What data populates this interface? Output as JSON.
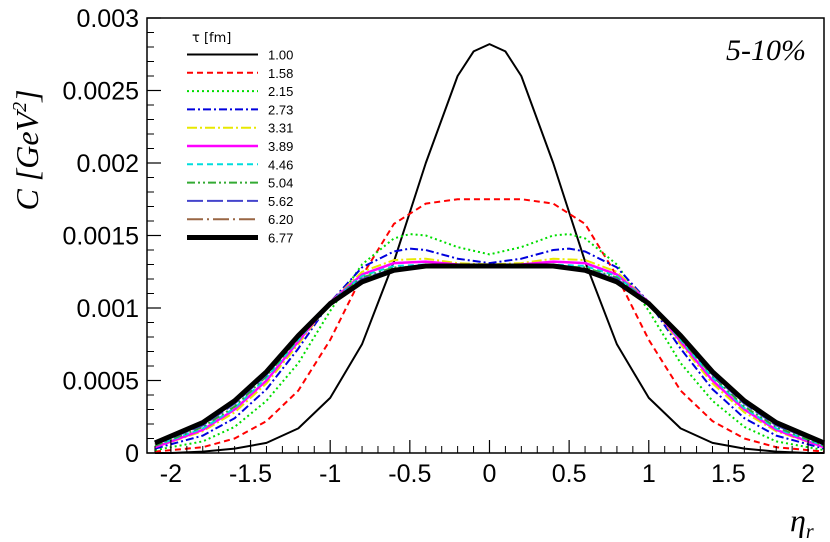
{
  "chart_data": {
    "type": "line",
    "title": "",
    "annotation": "5-10%",
    "xlabel": "η",
    "xlabel_sub": "r",
    "ylabel": "C [GeV²]",
    "ylabel_parts": {
      "main": "C ",
      "open": "[",
      "unit": "GeV",
      "sup": "2",
      "close": "]"
    },
    "xlim": [
      -2.15,
      2.1
    ],
    "ylim": [
      0,
      0.003
    ],
    "xticks": [
      -2,
      -1.5,
      -1,
      -0.5,
      0,
      0.5,
      1,
      1.5,
      2
    ],
    "xtick_labels": [
      "-2",
      "-1.5",
      "-1",
      "-0.5",
      "0",
      "0.5",
      "1",
      "1.5",
      "2"
    ],
    "yticks": [
      0,
      0.0005,
      0.001,
      0.0015,
      0.002,
      0.0025,
      0.003
    ],
    "ytick_labels": [
      "0",
      "0.0005",
      "0.001",
      "0.0015",
      "0.002",
      "0.0025",
      "0.003"
    ],
    "grid": false,
    "legend_title": "τ [fm]",
    "legend_position": "top-left",
    "series": [
      {
        "name": "1.00",
        "color": "#000000",
        "dash": "solid",
        "width": 2,
        "points": [
          [
            -2.1,
            0.0
          ],
          [
            -2.0,
            0.0
          ],
          [
            -1.8,
            1e-05
          ],
          [
            -1.6,
            3e-05
          ],
          [
            -1.4,
            7e-05
          ],
          [
            -1.2,
            0.00017
          ],
          [
            -1.0,
            0.00038
          ],
          [
            -0.8,
            0.00075
          ],
          [
            -0.6,
            0.00132
          ],
          [
            -0.4,
            0.002
          ],
          [
            -0.2,
            0.0026
          ],
          [
            -0.1,
            0.00277
          ],
          [
            0.0,
            0.00282
          ],
          [
            0.1,
            0.00277
          ],
          [
            0.2,
            0.0026
          ],
          [
            0.4,
            0.002
          ],
          [
            0.6,
            0.00132
          ],
          [
            0.8,
            0.00075
          ],
          [
            1.0,
            0.00038
          ],
          [
            1.2,
            0.00017
          ],
          [
            1.4,
            7e-05
          ],
          [
            1.6,
            3e-05
          ],
          [
            1.8,
            1e-05
          ],
          [
            2.0,
            0.0
          ],
          [
            2.1,
            0.0
          ]
        ]
      },
      {
        "name": "1.58",
        "color": "#ff0000",
        "dash": "6,4",
        "width": 2,
        "points": [
          [
            -2.1,
            1e-05
          ],
          [
            -1.8,
            4e-05
          ],
          [
            -1.6,
            0.0001
          ],
          [
            -1.4,
            0.00022
          ],
          [
            -1.2,
            0.00043
          ],
          [
            -1.0,
            0.00078
          ],
          [
            -0.8,
            0.00122
          ],
          [
            -0.6,
            0.00158
          ],
          [
            -0.4,
            0.00172
          ],
          [
            -0.2,
            0.00175
          ],
          [
            0.0,
            0.00175
          ],
          [
            0.2,
            0.00175
          ],
          [
            0.4,
            0.00172
          ],
          [
            0.6,
            0.00158
          ],
          [
            0.8,
            0.00122
          ],
          [
            1.0,
            0.00078
          ],
          [
            1.2,
            0.00043
          ],
          [
            1.4,
            0.00022
          ],
          [
            1.6,
            0.0001
          ],
          [
            1.8,
            4e-05
          ],
          [
            2.1,
            1e-05
          ]
        ]
      },
      {
        "name": "2.15",
        "color": "#00dd00",
        "dash": "2,3",
        "width": 2,
        "points": [
          [
            -2.1,
            2e-05
          ],
          [
            -1.8,
            8e-05
          ],
          [
            -1.6,
            0.00018
          ],
          [
            -1.4,
            0.00036
          ],
          [
            -1.2,
            0.00062
          ],
          [
            -1.0,
            0.00098
          ],
          [
            -0.8,
            0.0013
          ],
          [
            -0.6,
            0.00148
          ],
          [
            -0.5,
            0.00151
          ],
          [
            -0.4,
            0.0015
          ],
          [
            -0.2,
            0.00142
          ],
          [
            0.0,
            0.00137
          ],
          [
            0.2,
            0.00142
          ],
          [
            0.4,
            0.0015
          ],
          [
            0.5,
            0.00151
          ],
          [
            0.6,
            0.00148
          ],
          [
            0.8,
            0.0013
          ],
          [
            1.0,
            0.00098
          ],
          [
            1.2,
            0.00062
          ],
          [
            1.4,
            0.00036
          ],
          [
            1.6,
            0.00018
          ],
          [
            1.8,
            8e-05
          ],
          [
            2.1,
            2e-05
          ]
        ]
      },
      {
        "name": "2.73",
        "color": "#0000dd",
        "dash": "8,3,2,3",
        "width": 2,
        "points": [
          [
            -2.1,
            3e-05
          ],
          [
            -1.8,
            0.00012
          ],
          [
            -1.6,
            0.00024
          ],
          [
            -1.4,
            0.00044
          ],
          [
            -1.2,
            0.00072
          ],
          [
            -1.0,
            0.00104
          ],
          [
            -0.8,
            0.00128
          ],
          [
            -0.6,
            0.00139
          ],
          [
            -0.5,
            0.00141
          ],
          [
            -0.4,
            0.0014
          ],
          [
            -0.2,
            0.00134
          ],
          [
            0.0,
            0.00131
          ],
          [
            0.2,
            0.00134
          ],
          [
            0.4,
            0.0014
          ],
          [
            0.5,
            0.00141
          ],
          [
            0.6,
            0.00139
          ],
          [
            0.8,
            0.00128
          ],
          [
            1.0,
            0.00104
          ],
          [
            1.2,
            0.00072
          ],
          [
            1.4,
            0.00044
          ],
          [
            1.6,
            0.00024
          ],
          [
            1.8,
            0.00012
          ],
          [
            2.1,
            3e-05
          ]
        ]
      },
      {
        "name": "3.31",
        "color": "#e8e800",
        "dash": "10,3,2,3",
        "width": 2,
        "points": [
          [
            -2.1,
            4e-05
          ],
          [
            -1.8,
            0.00015
          ],
          [
            -1.6,
            0.00028
          ],
          [
            -1.4,
            0.00048
          ],
          [
            -1.2,
            0.00075
          ],
          [
            -1.0,
            0.00104
          ],
          [
            -0.8,
            0.00125
          ],
          [
            -0.6,
            0.00133
          ],
          [
            -0.4,
            0.00134
          ],
          [
            -0.2,
            0.00131
          ],
          [
            0.0,
            0.0013
          ],
          [
            0.2,
            0.00131
          ],
          [
            0.4,
            0.00134
          ],
          [
            0.6,
            0.00133
          ],
          [
            0.8,
            0.00125
          ],
          [
            1.0,
            0.00104
          ],
          [
            1.2,
            0.00075
          ],
          [
            1.4,
            0.00048
          ],
          [
            1.6,
            0.00028
          ],
          [
            1.8,
            0.00015
          ],
          [
            2.1,
            4e-05
          ]
        ]
      },
      {
        "name": "3.89",
        "color": "#ff00ff",
        "dash": "solid",
        "width": 2.5,
        "points": [
          [
            -2.1,
            4e-05
          ],
          [
            -1.8,
            0.00016
          ],
          [
            -1.6,
            0.0003
          ],
          [
            -1.4,
            0.0005
          ],
          [
            -1.2,
            0.00077
          ],
          [
            -1.0,
            0.00104
          ],
          [
            -0.8,
            0.00123
          ],
          [
            -0.6,
            0.00131
          ],
          [
            -0.4,
            0.00132
          ],
          [
            -0.2,
            0.0013
          ],
          [
            0.0,
            0.00129
          ],
          [
            0.2,
            0.0013
          ],
          [
            0.4,
            0.00132
          ],
          [
            0.6,
            0.00131
          ],
          [
            0.8,
            0.00123
          ],
          [
            1.0,
            0.00104
          ],
          [
            1.2,
            0.00077
          ],
          [
            1.4,
            0.0005
          ],
          [
            1.6,
            0.0003
          ],
          [
            1.8,
            0.00016
          ],
          [
            2.1,
            4e-05
          ]
        ]
      },
      {
        "name": "4.46",
        "color": "#00dddd",
        "dash": "6,4",
        "width": 2,
        "points": [
          [
            -2.1,
            5e-05
          ],
          [
            -1.8,
            0.00017
          ],
          [
            -1.6,
            0.00031
          ],
          [
            -1.4,
            0.00052
          ],
          [
            -1.2,
            0.00078
          ],
          [
            -1.0,
            0.00104
          ],
          [
            -0.8,
            0.00122
          ],
          [
            -0.6,
            0.00129
          ],
          [
            -0.4,
            0.0013
          ],
          [
            -0.2,
            0.00129
          ],
          [
            0.0,
            0.00129
          ],
          [
            0.2,
            0.00129
          ],
          [
            0.4,
            0.0013
          ],
          [
            0.6,
            0.00129
          ],
          [
            0.8,
            0.00122
          ],
          [
            1.0,
            0.00104
          ],
          [
            1.2,
            0.00078
          ],
          [
            1.4,
            0.00052
          ],
          [
            1.6,
            0.00031
          ],
          [
            1.8,
            0.00017
          ],
          [
            2.1,
            5e-05
          ]
        ]
      },
      {
        "name": "5.04",
        "color": "#33aa33",
        "dash": "8,3,2,3,2,3",
        "width": 2,
        "points": [
          [
            -2.1,
            5e-05
          ],
          [
            -1.8,
            0.00018
          ],
          [
            -1.6,
            0.00032
          ],
          [
            -1.4,
            0.00053
          ],
          [
            -1.2,
            0.00079
          ],
          [
            -1.0,
            0.00104
          ],
          [
            -0.8,
            0.00121
          ],
          [
            -0.6,
            0.00128
          ],
          [
            -0.4,
            0.00129
          ],
          [
            -0.2,
            0.00129
          ],
          [
            0.0,
            0.00129
          ],
          [
            0.2,
            0.00129
          ],
          [
            0.4,
            0.00129
          ],
          [
            0.6,
            0.00128
          ],
          [
            0.8,
            0.00121
          ],
          [
            1.0,
            0.00104
          ],
          [
            1.2,
            0.00079
          ],
          [
            1.4,
            0.00053
          ],
          [
            1.6,
            0.00032
          ],
          [
            1.8,
            0.00018
          ],
          [
            2.1,
            5e-05
          ]
        ]
      },
      {
        "name": "5.62",
        "color": "#4444cc",
        "dash": "16,4",
        "width": 2,
        "points": [
          [
            -2.1,
            6e-05
          ],
          [
            -1.8,
            0.00019
          ],
          [
            -1.6,
            0.00034
          ],
          [
            -1.4,
            0.00054
          ],
          [
            -1.2,
            0.0008
          ],
          [
            -1.0,
            0.00104
          ],
          [
            -0.8,
            0.0012
          ],
          [
            -0.6,
            0.00127
          ],
          [
            -0.4,
            0.00129
          ],
          [
            -0.2,
            0.00129
          ],
          [
            0.0,
            0.00129
          ],
          [
            0.2,
            0.00129
          ],
          [
            0.4,
            0.00129
          ],
          [
            0.6,
            0.00127
          ],
          [
            0.8,
            0.0012
          ],
          [
            1.0,
            0.00104
          ],
          [
            1.2,
            0.0008
          ],
          [
            1.4,
            0.00054
          ],
          [
            1.6,
            0.00034
          ],
          [
            1.8,
            0.00019
          ],
          [
            2.1,
            6e-05
          ]
        ]
      },
      {
        "name": "6.20",
        "color": "#996644",
        "dash": "16,4,2,4",
        "width": 2,
        "points": [
          [
            -2.1,
            6e-05
          ],
          [
            -1.8,
            0.0002
          ],
          [
            -1.6,
            0.00035
          ],
          [
            -1.4,
            0.00055
          ],
          [
            -1.2,
            0.0008
          ],
          [
            -1.0,
            0.00103
          ],
          [
            -0.8,
            0.00119
          ],
          [
            -0.6,
            0.00127
          ],
          [
            -0.4,
            0.00129
          ],
          [
            -0.2,
            0.00129
          ],
          [
            0.0,
            0.00129
          ],
          [
            0.2,
            0.00129
          ],
          [
            0.4,
            0.00129
          ],
          [
            0.6,
            0.00127
          ],
          [
            0.8,
            0.00119
          ],
          [
            1.0,
            0.00103
          ],
          [
            1.2,
            0.0008
          ],
          [
            1.4,
            0.00055
          ],
          [
            1.6,
            0.00035
          ],
          [
            1.8,
            0.0002
          ],
          [
            2.1,
            6e-05
          ]
        ]
      },
      {
        "name": "6.77",
        "color": "#000000",
        "dash": "solid",
        "width": 5,
        "points": [
          [
            -2.1,
            7e-05
          ],
          [
            -1.8,
            0.00021
          ],
          [
            -1.6,
            0.00036
          ],
          [
            -1.4,
            0.00056
          ],
          [
            -1.2,
            0.00081
          ],
          [
            -1.0,
            0.00103
          ],
          [
            -0.8,
            0.00118
          ],
          [
            -0.6,
            0.00126
          ],
          [
            -0.4,
            0.00129
          ],
          [
            -0.2,
            0.00129
          ],
          [
            0.0,
            0.00129
          ],
          [
            0.2,
            0.00129
          ],
          [
            0.4,
            0.00129
          ],
          [
            0.6,
            0.00126
          ],
          [
            0.8,
            0.00118
          ],
          [
            1.0,
            0.00103
          ],
          [
            1.2,
            0.00081
          ],
          [
            1.4,
            0.00056
          ],
          [
            1.6,
            0.00036
          ],
          [
            1.8,
            0.00021
          ],
          [
            2.1,
            7e-05
          ]
        ]
      }
    ]
  }
}
